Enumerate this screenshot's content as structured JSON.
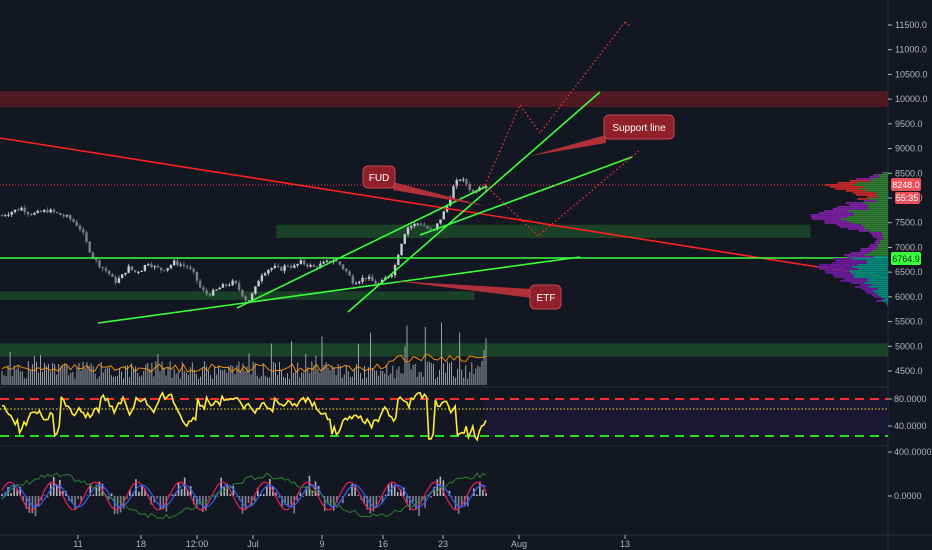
{
  "chart_data": [
    {
      "type": "candlestick",
      "panel": "price",
      "y_axis": {
        "ticks": [
          4500,
          5000,
          5500,
          6000,
          6500,
          7000,
          7500,
          8000,
          8500,
          9000,
          9500,
          10000,
          10500,
          11000,
          11500
        ],
        "tick_labels": [
          "4500.0",
          "5000.0",
          "5500.0",
          "6000.0",
          "6500.0",
          "7000.0",
          "7500.0",
          "8000.0",
          "8500.0",
          "9000.0",
          "9500.0",
          "10000.0",
          "10500.0",
          "11000.0",
          "11500.0"
        ],
        "ylim": [
          4300,
          11900
        ]
      },
      "x_axis": {
        "tick_labels": [
          "11",
          "18",
          "12:00",
          "Jul",
          "9",
          "16",
          "23",
          "Aug",
          "13"
        ]
      },
      "price_label": "8248.0",
      "countdown_label": "55:35",
      "level_label": "6764.9",
      "horizontal_level": 6764.9,
      "close_line": 8248.0,
      "zones": [
        {
          "name": "resistance-zone",
          "from": 9850,
          "to": 10150,
          "color": "#5c1a24"
        },
        {
          "name": "upper-support-zone",
          "from": 7200,
          "to": 7450,
          "color": "#1d4a2a"
        },
        {
          "name": "lower-support-zone",
          "from": 5950,
          "to": 6100,
          "color": "#1d4a2a"
        },
        {
          "name": "volume-zone",
          "from": 4800,
          "to": 5050,
          "color": "#1d4a2a"
        }
      ],
      "price_series": [
        7650,
        7700,
        7750,
        7800,
        7700,
        7680,
        7720,
        7750,
        7700,
        7650,
        7600,
        7500,
        7350,
        7000,
        6750,
        6600,
        6500,
        6300,
        6400,
        6600,
        6500,
        6550,
        6700,
        6600,
        6550,
        6600,
        6700,
        6650,
        6600,
        6450,
        6150,
        6050,
        6100,
        6200,
        6250,
        6300,
        6100,
        5900,
        6100,
        6450,
        6550,
        6600,
        6550,
        6650,
        6600,
        6700,
        6650,
        6600,
        6650,
        6700,
        6750,
        6650,
        6500,
        6300,
        6350,
        6400,
        6300,
        6250,
        6400,
        6500,
        7000,
        7400,
        7450,
        7500,
        7400,
        7300,
        7550,
        7800,
        8200,
        8400,
        8300,
        8100,
        8250,
        8248
      ],
      "annotations": [
        "FUD",
        "Support line",
        "ETF"
      ]
    },
    {
      "type": "line",
      "panel": "oscillator",
      "y_axis": {
        "ticks": [
          40,
          80
        ],
        "tick_labels": [
          "40.0000",
          "80.0000"
        ],
        "ylim": [
          20,
          100
        ]
      },
      "upper_band": 74,
      "lower_band": 29,
      "mid_line": 60
    },
    {
      "type": "histogram",
      "panel": "momentum",
      "y_axis": {
        "ticks": [
          0,
          400
        ],
        "tick_labels": [
          "0.0000",
          "400.0000"
        ]
      }
    }
  ],
  "colors": {
    "background": "#131722",
    "up": "#c9ccd4",
    "down": "#7a7e8a",
    "trend_red": "#ff2020",
    "trend_green": "#3cff3c",
    "projection": "#ff3030",
    "oscillator": "#ffeb3b",
    "band_red": "#ff2d2d",
    "band_green": "#22dd22"
  }
}
